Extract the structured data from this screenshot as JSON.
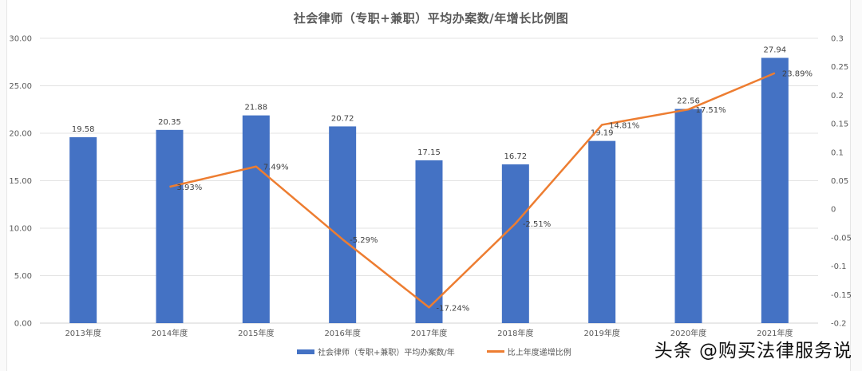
{
  "chart_data": {
    "type": "bar+line",
    "title": "社会律师（专职+兼职）平均办案数/年增长比例图",
    "categories": [
      "2013年度",
      "2014年度",
      "2015年度",
      "2016年度",
      "2017年度",
      "2018年度",
      "2019年度",
      "2020年度",
      "2021年度"
    ],
    "series": [
      {
        "name": "社会律师（专职+兼职）平均办案数/年",
        "type": "bar",
        "axis": "left",
        "color": "#4472c4",
        "values": [
          19.58,
          20.35,
          21.88,
          20.72,
          17.15,
          16.72,
          19.19,
          22.56,
          27.94
        ],
        "labels": [
          "19.58",
          "20.35",
          "21.88",
          "20.72",
          "17.15",
          "16.72",
          "19.19",
          "22.56",
          "27.94"
        ]
      },
      {
        "name": "比上年度递增比例",
        "type": "line",
        "axis": "right",
        "color": "#ed7d31",
        "values": [
          null,
          0.0393,
          0.0749,
          -0.0529,
          -0.1724,
          -0.0251,
          0.1481,
          0.1751,
          0.2389
        ],
        "labels": [
          "",
          "3.93%",
          "7.49%",
          "-5.29%",
          "-17.24%",
          "-2.51%",
          "14.81%",
          "17.51%",
          "23.89%"
        ]
      }
    ],
    "left_axis": {
      "ylim": [
        0,
        30
      ],
      "ticks": [
        "0.00",
        "5.00",
        "10.00",
        "15.00",
        "20.00",
        "25.00",
        "30.00"
      ]
    },
    "right_axis": {
      "ylim": [
        -0.2,
        0.3
      ],
      "ticks": [
        "-0.2",
        "-0.15",
        "-0.1",
        "-0.05",
        "0",
        "0.05",
        "0.1",
        "0.15",
        "0.2",
        "0.25",
        "0.3"
      ]
    },
    "grid": true,
    "legend_position": "bottom",
    "xlabel": "",
    "ylabel": ""
  },
  "legend": {
    "bar_label": "社会律师（专职+兼职）平均办案数/年",
    "line_label": "比上年度递增比例"
  },
  "watermark": "头条 @购买法律服务说"
}
